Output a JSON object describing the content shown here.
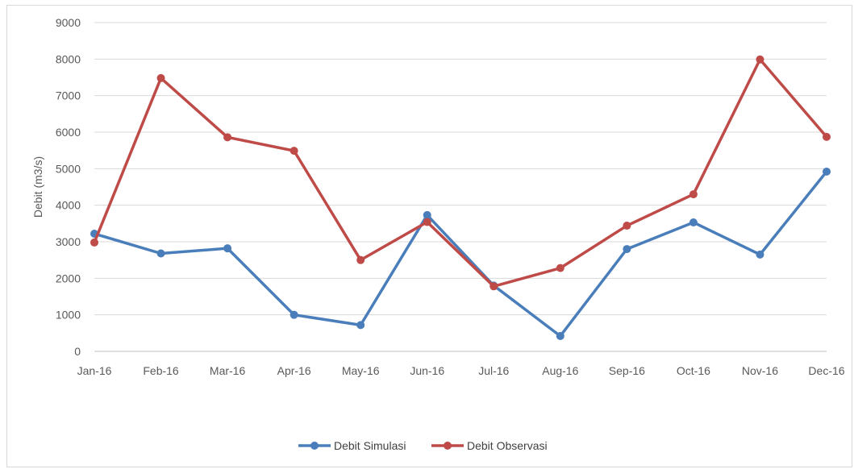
{
  "chart_data": {
    "type": "line",
    "title": "",
    "xlabel": "",
    "ylabel": "Debit (m3/s)",
    "ylim": [
      0,
      9000
    ],
    "yticks": [
      0,
      1000,
      2000,
      3000,
      4000,
      5000,
      6000,
      7000,
      8000,
      9000
    ],
    "grid": true,
    "legend_position": "bottom",
    "categories": [
      "Jan-16",
      "Feb-16",
      "Mar-16",
      "Apr-16",
      "May-16",
      "Jun-16",
      "Jul-16",
      "Aug-16",
      "Sep-16",
      "Oct-16",
      "Nov-16",
      "Dec-16"
    ],
    "series": [
      {
        "name": "Debit Simulasi",
        "color": "#4a7ebb",
        "values": [
          3220,
          2680,
          2820,
          1000,
          720,
          3730,
          1800,
          420,
          2800,
          3530,
          2650,
          4920
        ]
      },
      {
        "name": "Debit Observasi",
        "color": "#be4b48",
        "values": [
          2980,
          7480,
          5860,
          5490,
          2500,
          3540,
          1780,
          2280,
          3440,
          4300,
          7990,
          5870
        ]
      }
    ]
  }
}
